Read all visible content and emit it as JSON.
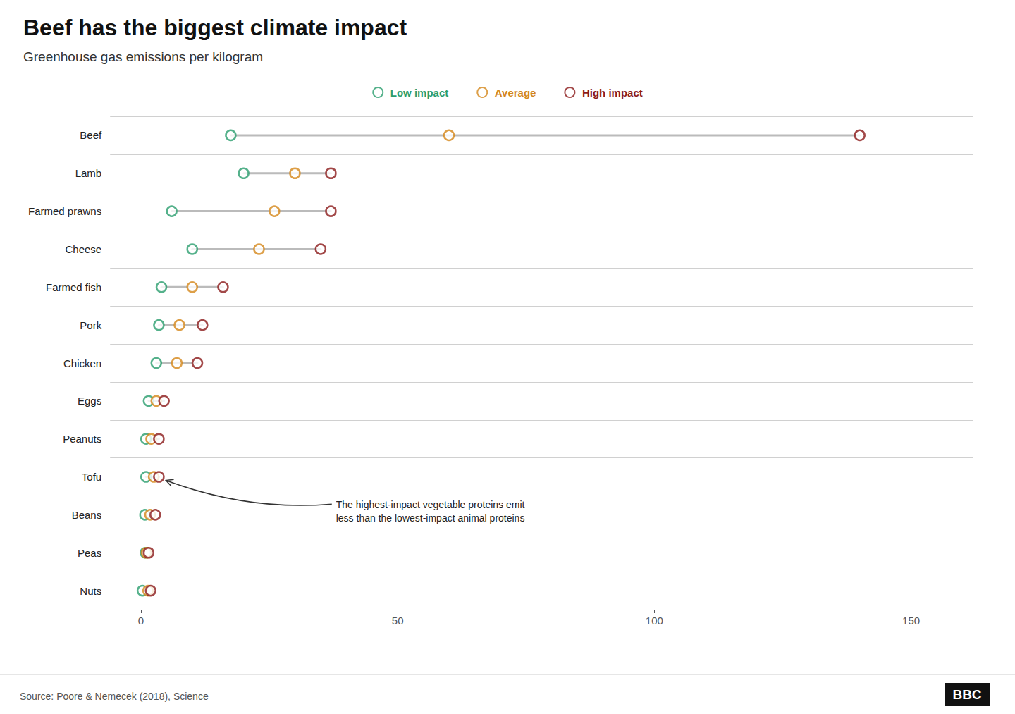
{
  "chart_data": {
    "type": "dumbbell",
    "orientation": "horizontal",
    "title": "Beef has the biggest climate impact",
    "subtitle": "Greenhouse gas emissions per kilogram",
    "source": "Source: Poore & Nemecek (2018), Science",
    "logo": "BBC",
    "categories": [
      "Beef",
      "Lamb",
      "Farmed prawns",
      "Cheese",
      "Farmed fish",
      "Pork",
      "Chicken",
      "Eggs",
      "Peanuts",
      "Tofu",
      "Beans",
      "Peas",
      "Nuts"
    ],
    "series": [
      {
        "name": "Low impact",
        "color": "#2a9d6e",
        "marker": "circle",
        "values": [
          17.5,
          20,
          6,
          10,
          4,
          3.5,
          3,
          1.5,
          1,
          1,
          0.8,
          0.9,
          0.3
        ]
      },
      {
        "name": "Average",
        "color": "#d4871a",
        "marker": "circle",
        "values": [
          60,
          30,
          26,
          23,
          10,
          7.5,
          7,
          3,
          2,
          2.5,
          1.8,
          1.1,
          1.4
        ]
      },
      {
        "name": "High impact",
        "color": "#8b1a1a",
        "marker": "circle",
        "values": [
          140,
          37,
          37,
          35,
          16,
          12,
          11,
          4.5,
          3.5,
          3.5,
          2.8,
          1.5,
          1.9
        ]
      }
    ],
    "xlim": [
      -6,
      162
    ],
    "xticks": [
      0,
      50,
      100,
      150
    ],
    "grid": true,
    "legend": "top",
    "annotations": [
      {
        "text": "The highest-impact vegetable proteins emit\nless than the lowest-impact animal proteins",
        "category": "Tofu",
        "series": "High impact"
      }
    ]
  }
}
